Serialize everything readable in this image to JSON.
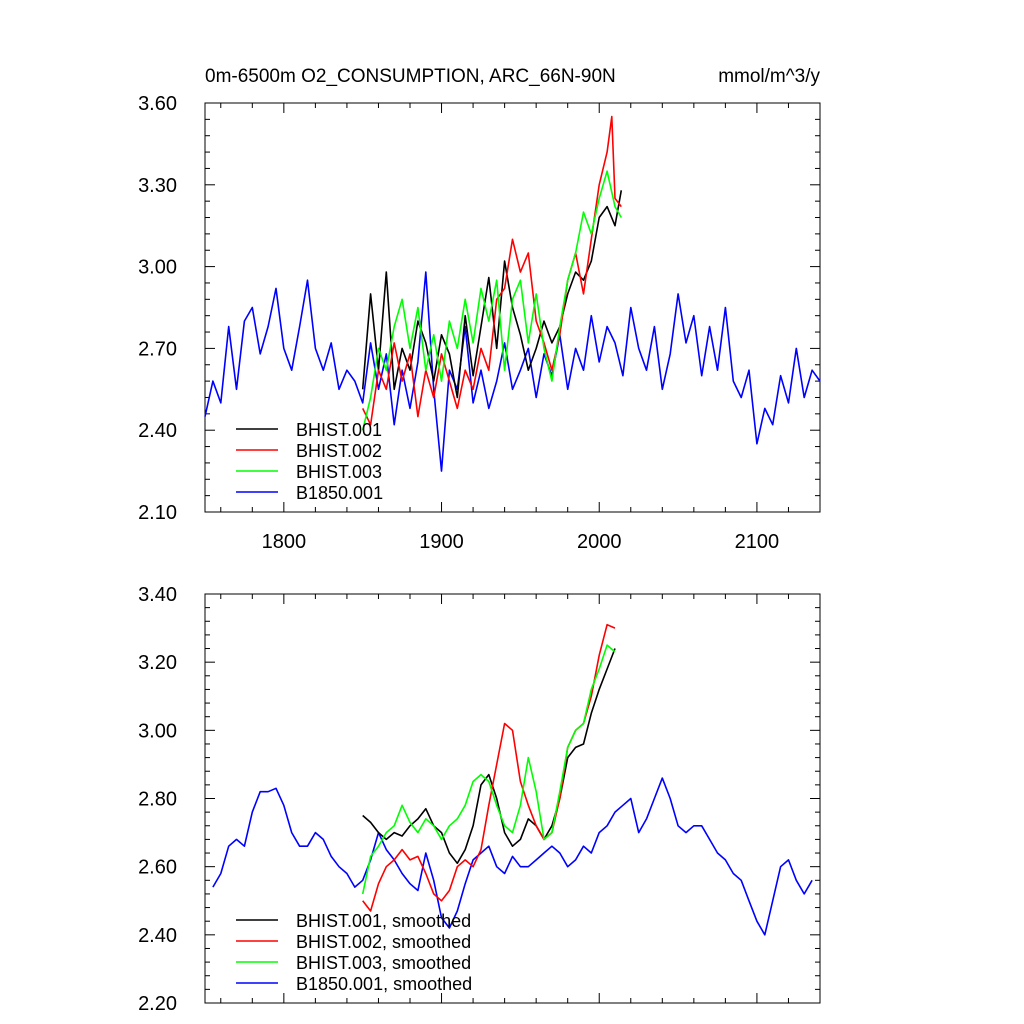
{
  "chart_data": [
    {
      "type": "line",
      "title_left": "0m-6500m O2_CONSUMPTION, ARC_66N-90N",
      "title_right": "mmol/m^3/y",
      "xlabel": "",
      "ylabel": "",
      "xlim": [
        1750,
        2140
      ],
      "ylim": [
        2.1,
        3.6
      ],
      "xticks": [
        1800,
        1900,
        2000,
        2100
      ],
      "xtick_labels": [
        "1800",
        "1900",
        "2000",
        "2100"
      ],
      "yticks": [
        2.1,
        2.4,
        2.7,
        3.0,
        3.3,
        3.6
      ],
      "ytick_labels": [
        "2.10",
        "2.40",
        "2.70",
        "3.00",
        "3.30",
        "3.60"
      ],
      "legend_position": "bottom-left",
      "grid": false,
      "series": [
        {
          "name": "BHIST.001",
          "color": "#000000",
          "x": [
            1850,
            1855,
            1860,
            1865,
            1870,
            1875,
            1880,
            1885,
            1890,
            1895,
            1900,
            1905,
            1910,
            1915,
            1920,
            1925,
            1930,
            1935,
            1940,
            1945,
            1950,
            1955,
            1960,
            1965,
            1970,
            1975,
            1980,
            1985,
            1990,
            1995,
            2000,
            2005,
            2010,
            2014
          ],
          "y": [
            2.55,
            2.9,
            2.62,
            2.98,
            2.55,
            2.7,
            2.62,
            2.8,
            2.72,
            2.58,
            2.75,
            2.68,
            2.52,
            2.82,
            2.6,
            2.78,
            2.96,
            2.7,
            3.02,
            2.85,
            2.75,
            2.62,
            2.7,
            2.8,
            2.72,
            2.78,
            2.9,
            2.98,
            2.95,
            3.02,
            3.18,
            3.22,
            3.15,
            3.28
          ]
        },
        {
          "name": "BHIST.002",
          "color": "#ff0000",
          "x": [
            1850,
            1855,
            1860,
            1865,
            1870,
            1875,
            1880,
            1885,
            1890,
            1895,
            1900,
            1905,
            1910,
            1915,
            1920,
            1925,
            1930,
            1935,
            1940,
            1945,
            1950,
            1955,
            1960,
            1965,
            1970,
            1975,
            1980,
            1985,
            1990,
            1995,
            2000,
            2005,
            2008,
            2010,
            2014
          ],
          "y": [
            2.48,
            2.42,
            2.62,
            2.55,
            2.72,
            2.58,
            2.68,
            2.45,
            2.62,
            2.52,
            2.68,
            2.58,
            2.48,
            2.62,
            2.55,
            2.7,
            2.62,
            2.88,
            2.92,
            3.1,
            2.98,
            3.05,
            2.8,
            2.72,
            2.62,
            2.75,
            2.95,
            3.05,
            2.9,
            3.1,
            3.3,
            3.42,
            3.55,
            3.25,
            3.22
          ]
        },
        {
          "name": "BHIST.003",
          "color": "#00ff00",
          "x": [
            1850,
            1855,
            1860,
            1865,
            1870,
            1875,
            1880,
            1885,
            1890,
            1895,
            1900,
            1905,
            1910,
            1915,
            1920,
            1925,
            1930,
            1935,
            1940,
            1945,
            1950,
            1955,
            1960,
            1965,
            1970,
            1975,
            1980,
            1985,
            1990,
            1995,
            2000,
            2005,
            2010,
            2014
          ],
          "y": [
            2.4,
            2.52,
            2.7,
            2.62,
            2.78,
            2.88,
            2.7,
            2.85,
            2.62,
            2.75,
            2.58,
            2.8,
            2.7,
            2.88,
            2.72,
            2.92,
            2.8,
            2.95,
            2.62,
            2.88,
            2.95,
            2.72,
            2.9,
            2.7,
            2.58,
            2.78,
            2.95,
            3.05,
            3.2,
            3.12,
            3.25,
            3.35,
            3.22,
            3.18
          ]
        },
        {
          "name": "B1850.001",
          "color": "#0000ff",
          "x": [
            1750,
            1755,
            1760,
            1765,
            1770,
            1775,
            1780,
            1785,
            1790,
            1795,
            1800,
            1805,
            1810,
            1815,
            1820,
            1825,
            1830,
            1835,
            1840,
            1845,
            1850,
            1855,
            1860,
            1865,
            1870,
            1875,
            1880,
            1885,
            1890,
            1895,
            1900,
            1905,
            1910,
            1915,
            1920,
            1925,
            1930,
            1935,
            1940,
            1945,
            1950,
            1955,
            1960,
            1965,
            1970,
            1975,
            1980,
            1985,
            1990,
            1995,
            2000,
            2005,
            2010,
            2015,
            2020,
            2025,
            2030,
            2035,
            2040,
            2045,
            2050,
            2055,
            2060,
            2065,
            2070,
            2075,
            2080,
            2085,
            2090,
            2095,
            2100,
            2105,
            2110,
            2115,
            2120,
            2125,
            2130,
            2135,
            2140
          ],
          "y": [
            2.45,
            2.58,
            2.5,
            2.78,
            2.55,
            2.8,
            2.85,
            2.68,
            2.78,
            2.92,
            2.7,
            2.62,
            2.78,
            2.95,
            2.7,
            2.62,
            2.72,
            2.55,
            2.62,
            2.58,
            2.5,
            2.72,
            2.55,
            2.68,
            2.42,
            2.62,
            2.48,
            2.65,
            2.98,
            2.55,
            2.25,
            2.62,
            2.55,
            2.78,
            2.5,
            2.62,
            2.48,
            2.58,
            2.72,
            2.55,
            2.62,
            2.7,
            2.52,
            2.68,
            2.6,
            2.75,
            2.55,
            2.7,
            2.62,
            2.82,
            2.65,
            2.78,
            2.72,
            2.6,
            2.85,
            2.7,
            2.62,
            2.78,
            2.55,
            2.68,
            2.9,
            2.72,
            2.82,
            2.6,
            2.78,
            2.62,
            2.85,
            2.58,
            2.52,
            2.62,
            2.35,
            2.48,
            2.42,
            2.6,
            2.5,
            2.7,
            2.52,
            2.62,
            2.58
          ]
        }
      ]
    },
    {
      "type": "line",
      "title_left": "",
      "title_right": "",
      "xlabel": "",
      "ylabel": "",
      "xlim": [
        1750,
        2140
      ],
      "ylim": [
        2.2,
        3.4
      ],
      "xticks": [
        1800,
        1900,
        2000,
        2100
      ],
      "xtick_labels": [],
      "yticks": [
        2.2,
        2.4,
        2.6,
        2.8,
        3.0,
        3.2,
        3.4
      ],
      "ytick_labels": [
        "2.20",
        "2.40",
        "2.60",
        "2.80",
        "3.00",
        "3.20",
        "3.40"
      ],
      "legend_position": "bottom-left",
      "grid": false,
      "series": [
        {
          "name": "BHIST.001, smoothed",
          "color": "#000000",
          "x": [
            1850,
            1855,
            1860,
            1865,
            1870,
            1875,
            1880,
            1885,
            1890,
            1895,
            1900,
            1905,
            1910,
            1915,
            1920,
            1925,
            1930,
            1935,
            1940,
            1945,
            1950,
            1955,
            1960,
            1965,
            1970,
            1975,
            1980,
            1985,
            1990,
            1995,
            2000,
            2005,
            2010
          ],
          "y": [
            2.75,
            2.73,
            2.7,
            2.68,
            2.7,
            2.69,
            2.72,
            2.74,
            2.77,
            2.72,
            2.7,
            2.64,
            2.61,
            2.65,
            2.72,
            2.84,
            2.87,
            2.8,
            2.7,
            2.66,
            2.68,
            2.74,
            2.72,
            2.68,
            2.72,
            2.8,
            2.92,
            2.95,
            2.96,
            3.05,
            3.12,
            3.18,
            3.24
          ]
        },
        {
          "name": "BHIST.002, smoothed",
          "color": "#ff0000",
          "x": [
            1850,
            1855,
            1860,
            1865,
            1870,
            1875,
            1880,
            1885,
            1890,
            1895,
            1900,
            1905,
            1910,
            1915,
            1920,
            1925,
            1930,
            1935,
            1940,
            1945,
            1950,
            1955,
            1960,
            1965,
            1970,
            1975,
            1980,
            1985,
            1990,
            1995,
            2000,
            2005,
            2010
          ],
          "y": [
            2.5,
            2.47,
            2.55,
            2.6,
            2.62,
            2.65,
            2.62,
            2.63,
            2.58,
            2.52,
            2.5,
            2.53,
            2.6,
            2.62,
            2.6,
            2.65,
            2.78,
            2.9,
            3.02,
            3.0,
            2.85,
            2.78,
            2.72,
            2.68,
            2.7,
            2.8,
            2.95,
            3.0,
            3.02,
            3.1,
            3.22,
            3.31,
            3.3
          ]
        },
        {
          "name": "BHIST.003, smoothed",
          "color": "#00ff00",
          "x": [
            1850,
            1855,
            1860,
            1865,
            1870,
            1875,
            1880,
            1885,
            1890,
            1895,
            1900,
            1905,
            1910,
            1915,
            1920,
            1925,
            1930,
            1935,
            1940,
            1945,
            1950,
            1955,
            1960,
            1965,
            1970,
            1975,
            1980,
            1985,
            1990,
            1995,
            2000,
            2005,
            2010
          ],
          "y": [
            2.52,
            2.63,
            2.66,
            2.7,
            2.72,
            2.78,
            2.73,
            2.7,
            2.74,
            2.72,
            2.68,
            2.72,
            2.74,
            2.78,
            2.85,
            2.87,
            2.85,
            2.78,
            2.72,
            2.7,
            2.78,
            2.92,
            2.82,
            2.68,
            2.7,
            2.82,
            2.95,
            3.0,
            3.02,
            3.12,
            3.18,
            3.25,
            3.23
          ]
        },
        {
          "name": "B1850.001, smoothed",
          "color": "#0000ff",
          "x": [
            1755,
            1760,
            1765,
            1770,
            1775,
            1780,
            1785,
            1790,
            1795,
            1800,
            1805,
            1810,
            1815,
            1820,
            1825,
            1830,
            1835,
            1840,
            1845,
            1850,
            1855,
            1860,
            1865,
            1870,
            1875,
            1880,
            1885,
            1890,
            1895,
            1900,
            1905,
            1910,
            1915,
            1920,
            1925,
            1930,
            1935,
            1940,
            1945,
            1950,
            1955,
            1960,
            1965,
            1970,
            1975,
            1980,
            1985,
            1990,
            1995,
            2000,
            2005,
            2010,
            2015,
            2020,
            2025,
            2030,
            2035,
            2040,
            2045,
            2050,
            2055,
            2060,
            2065,
            2070,
            2075,
            2080,
            2085,
            2090,
            2095,
            2100,
            2105,
            2110,
            2115,
            2120,
            2125,
            2130,
            2135
          ],
          "y": [
            2.54,
            2.58,
            2.66,
            2.68,
            2.66,
            2.76,
            2.82,
            2.82,
            2.83,
            2.78,
            2.7,
            2.66,
            2.66,
            2.7,
            2.68,
            2.63,
            2.6,
            2.58,
            2.54,
            2.56,
            2.62,
            2.7,
            2.65,
            2.62,
            2.58,
            2.55,
            2.53,
            2.64,
            2.56,
            2.45,
            2.42,
            2.47,
            2.55,
            2.62,
            2.64,
            2.66,
            2.6,
            2.58,
            2.63,
            2.6,
            2.6,
            2.62,
            2.64,
            2.66,
            2.64,
            2.6,
            2.62,
            2.66,
            2.64,
            2.7,
            2.72,
            2.76,
            2.78,
            2.8,
            2.7,
            2.74,
            2.8,
            2.86,
            2.8,
            2.72,
            2.7,
            2.72,
            2.72,
            2.68,
            2.64,
            2.62,
            2.58,
            2.56,
            2.5,
            2.44,
            2.4,
            2.5,
            2.6,
            2.62,
            2.56,
            2.52,
            2.56
          ]
        }
      ]
    }
  ]
}
